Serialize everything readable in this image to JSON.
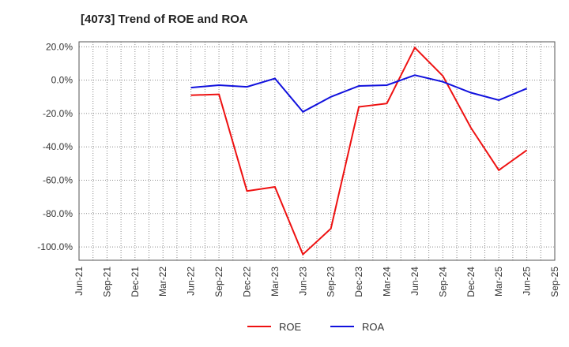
{
  "chart_data": {
    "type": "line",
    "title": "[4073]  Trend of ROE and ROA",
    "xlabel": "",
    "ylabel": "",
    "x_ticks": [
      "Jun-21",
      "Sep-21",
      "Dec-21",
      "Mar-22",
      "Jun-22",
      "Sep-22",
      "Dec-22",
      "Mar-23",
      "Jun-23",
      "Sep-23",
      "Dec-23",
      "Mar-24",
      "Jun-24",
      "Sep-24",
      "Dec-24",
      "Mar-25",
      "Jun-25",
      "Sep-25"
    ],
    "y_ticks": [
      20,
      0,
      -20,
      -40,
      -60,
      -80,
      -100
    ],
    "y_tick_labels": [
      "20.0%",
      "0.0%",
      "-20.0%",
      "-40.0%",
      "-60.0%",
      "-80.0%",
      "-100.0%"
    ],
    "ylim": [
      -108,
      23
    ],
    "grid": true,
    "legend_position": "bottom-center",
    "series": [
      {
        "name": "ROE",
        "color": "#ee1111",
        "x": [
          "Jun-22",
          "Sep-22",
          "Dec-22",
          "Mar-23",
          "Jun-23",
          "Sep-23",
          "Dec-23",
          "Mar-24",
          "Jun-24",
          "Sep-24",
          "Dec-24",
          "Mar-25",
          "Jun-25"
        ],
        "values": [
          -9.0,
          -8.5,
          -66.5,
          -64.0,
          -104.5,
          -89.0,
          -16.0,
          -14.0,
          19.5,
          2.5,
          -28.5,
          -54.0,
          -42.0
        ]
      },
      {
        "name": "ROA",
        "color": "#1111dd",
        "x": [
          "Jun-22",
          "Sep-22",
          "Dec-22",
          "Mar-23",
          "Jun-23",
          "Sep-23",
          "Dec-23",
          "Mar-24",
          "Jun-24",
          "Sep-24",
          "Dec-24",
          "Mar-25",
          "Jun-25"
        ],
        "values": [
          -4.5,
          -3.0,
          -4.0,
          1.0,
          -19.0,
          -10.0,
          -3.5,
          -3.0,
          3.0,
          -1.0,
          -7.5,
          -12.0,
          -5.0
        ]
      }
    ]
  }
}
